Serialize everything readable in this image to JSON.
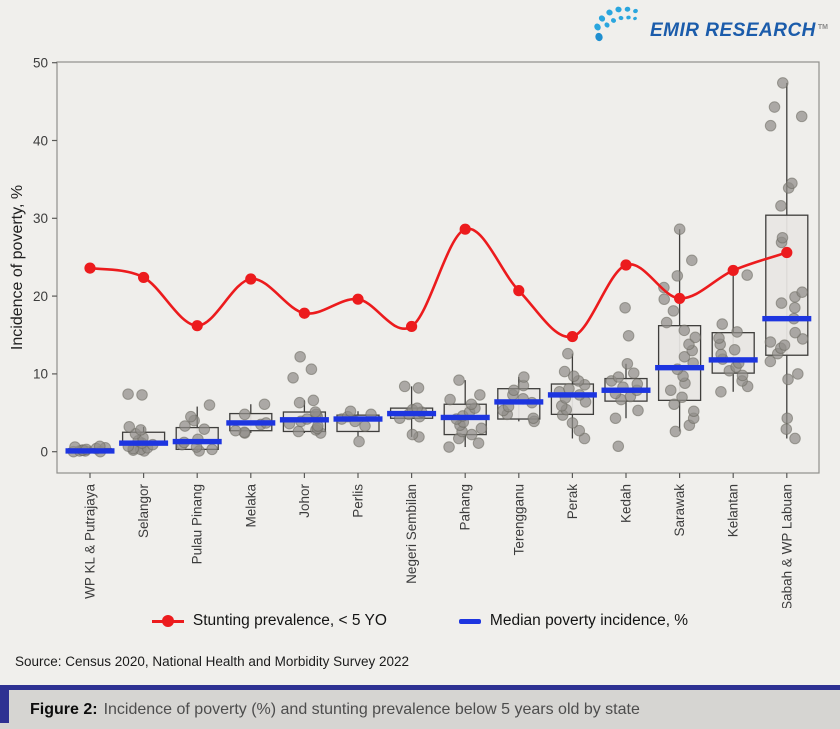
{
  "logo": {
    "brand": "EMIR RESEARCH",
    "trademark": "TM"
  },
  "source": {
    "text": "Source: Census 2020, National Health and Morbidity Survey 2022"
  },
  "caption": {
    "label": "Figure 2:",
    "text": "Incidence of poverty (%) and stunting prevalence below 5 years old by state"
  },
  "legend": {
    "items": [
      {
        "label": "Stunting prevalence, < 5 YO",
        "color": "#ec1b1d",
        "glyph": "line-dot"
      },
      {
        "label": "Median poverty incidence, %",
        "color": "#1d35e0",
        "glyph": "dash"
      }
    ]
  },
  "colors": {
    "stunting_line": "#ec1b1d",
    "median_bar": "#1d35e0",
    "box_fill": "#e8e6e3",
    "box_stroke": "#3f3e3c",
    "point_fill": "#908e89",
    "point_stroke": "#69675f",
    "panel_border": "#8f8f8c",
    "accent_navy": "#2e3192",
    "logo_blue": "#1b5cab",
    "logo_cyan": "#2aa6de"
  },
  "chart_data": {
    "type": "boxplot+jitter+line",
    "ylabel": "Incidence of poverty, %",
    "ylim": [
      0,
      50
    ],
    "yticks": [
      0,
      10,
      20,
      30,
      40,
      50
    ],
    "grid": false,
    "legend_position": "bottom",
    "categories": [
      "WP KL & Putrajaya",
      "Selangor",
      "Pulau Pinang",
      "Melaka",
      "Johor",
      "Perlis",
      "Negeri Sembilan",
      "Pahang",
      "Terengganu",
      "Perak",
      "Kedah",
      "Sarawak",
      "Kelantan",
      "Sabah & WP Labuan"
    ],
    "stunting_line": {
      "name": "Stunting prevalence, < 5 YO",
      "values": [
        23.6,
        22.4,
        16.2,
        22.2,
        17.8,
        19.6,
        16.1,
        28.6,
        20.7,
        14.8,
        24.0,
        19.7,
        23.3,
        25.6
      ]
    },
    "median_bar": {
      "name": "Median poverty incidence, %"
    },
    "boxes": [
      {
        "low": 0,
        "q1": 0,
        "median": 0.1,
        "q3": 0.4,
        "high": 0.7
      },
      {
        "low": 0.1,
        "q1": 0.9,
        "median": 1.1,
        "q3": 2.5,
        "high": 3.2
      },
      {
        "low": 0.1,
        "q1": 0.3,
        "median": 1.3,
        "q3": 3.1,
        "high": 5.8
      },
      {
        "low": 2.4,
        "q1": 2.7,
        "median": 3.7,
        "q3": 4.9,
        "high": 6.1
      },
      {
        "low": 2.4,
        "q1": 2.6,
        "median": 4.1,
        "q3": 5.1,
        "high": 6.6
      },
      {
        "low": 2.0,
        "q1": 2.6,
        "median": 4.2,
        "q3": 4.7,
        "high": 5.2
      },
      {
        "low": 1.9,
        "q1": 4.3,
        "median": 4.9,
        "q3": 5.6,
        "high": 8.4
      },
      {
        "low": 0.6,
        "q1": 2.2,
        "median": 4.4,
        "q3": 6.1,
        "high": 9.2
      },
      {
        "low": 3.9,
        "q1": 4.2,
        "median": 6.4,
        "q3": 8.1,
        "high": 9.6
      },
      {
        "low": 1.7,
        "q1": 4.8,
        "median": 7.3,
        "q3": 8.7,
        "high": 12.6
      },
      {
        "low": 4.3,
        "q1": 6.5,
        "median": 7.9,
        "q3": 9.4,
        "high": 11.3
      },
      {
        "low": 2.6,
        "q1": 6.6,
        "median": 10.8,
        "q3": 16.2,
        "high": 28.6
      },
      {
        "low": 7.7,
        "q1": 10.1,
        "median": 11.8,
        "q3": 15.3,
        "high": 22.7
      },
      {
        "low": 1.7,
        "q1": 12.4,
        "median": 17.1,
        "q3": 30.4,
        "high": 47.4
      }
    ],
    "points": [
      [
        0,
        0,
        0.1,
        0.1,
        0.2,
        0.2,
        0.3,
        0.4,
        0.5,
        0.6,
        0.7
      ],
      [
        0.1,
        0.2,
        0.3,
        0.4,
        0.5,
        0.7,
        0.9,
        1.1,
        1.4,
        1.8,
        2.3,
        2.8,
        3.2,
        7.3,
        7.4
      ],
      [
        0.1,
        0.3,
        0.6,
        0.9,
        1.2,
        1.6,
        2.9,
        3.3,
        4.0,
        4.5,
        6.0
      ],
      [
        2.4,
        2.5,
        2.7,
        3.5,
        3.7,
        4.8,
        6.1
      ],
      [
        2.4,
        2.6,
        2.8,
        3.0,
        3.3,
        3.6,
        3.9,
        4.2,
        4.5,
        4.8,
        5.1,
        6.3,
        6.6,
        9.5,
        10.6,
        12.2
      ],
      [
        1.3,
        3.3,
        3.9,
        4.2,
        4.5,
        4.8,
        5.2
      ],
      [
        1.9,
        2.2,
        4.3,
        4.5,
        4.8,
        5.1,
        5.4,
        5.6,
        8.2,
        8.4
      ],
      [
        0.6,
        1.1,
        1.7,
        2.2,
        2.6,
        3.0,
        3.4,
        3.8,
        4.2,
        4.6,
        5.1,
        5.6,
        6.1,
        6.7,
        7.3,
        9.2
      ],
      [
        3.9,
        4.3,
        4.8,
        5.3,
        5.8,
        6.3,
        6.8,
        7.3,
        7.9,
        8.5,
        9.6
      ],
      [
        1.7,
        2.7,
        3.7,
        4.7,
        5.4,
        5.9,
        6.4,
        6.9,
        7.3,
        7.7,
        8.1,
        8.6,
        9.1,
        9.7,
        10.3,
        12.6
      ],
      [
        0.7,
        4.3,
        5.3,
        6.7,
        7.1,
        7.5,
        7.9,
        8.3,
        8.7,
        9.1,
        9.6,
        10.1,
        11.3,
        14.9,
        18.5
      ],
      [
        2.6,
        3.4,
        4.3,
        5.2,
        6.1,
        7.0,
        7.9,
        8.8,
        9.7,
        10.6,
        11.4,
        12.2,
        13.0,
        13.8,
        14.7,
        15.6,
        16.6,
        18.1,
        19.6,
        21.1,
        22.6,
        24.6,
        28.6
      ],
      [
        7.7,
        8.4,
        9.1,
        9.8,
        10.4,
        10.9,
        11.4,
        11.9,
        12.5,
        13.1,
        13.8,
        14.6,
        15.4,
        16.4,
        22.7
      ],
      [
        1.7,
        2.9,
        4.3,
        9.3,
        10.0,
        11.6,
        12.6,
        13.3,
        13.7,
        14.1,
        14.5,
        15.3,
        17.1,
        18.5,
        19.1,
        19.9,
        20.5,
        26.9,
        27.5,
        31.6,
        33.9,
        34.5,
        41.9,
        43.1,
        44.3,
        47.4
      ]
    ]
  }
}
